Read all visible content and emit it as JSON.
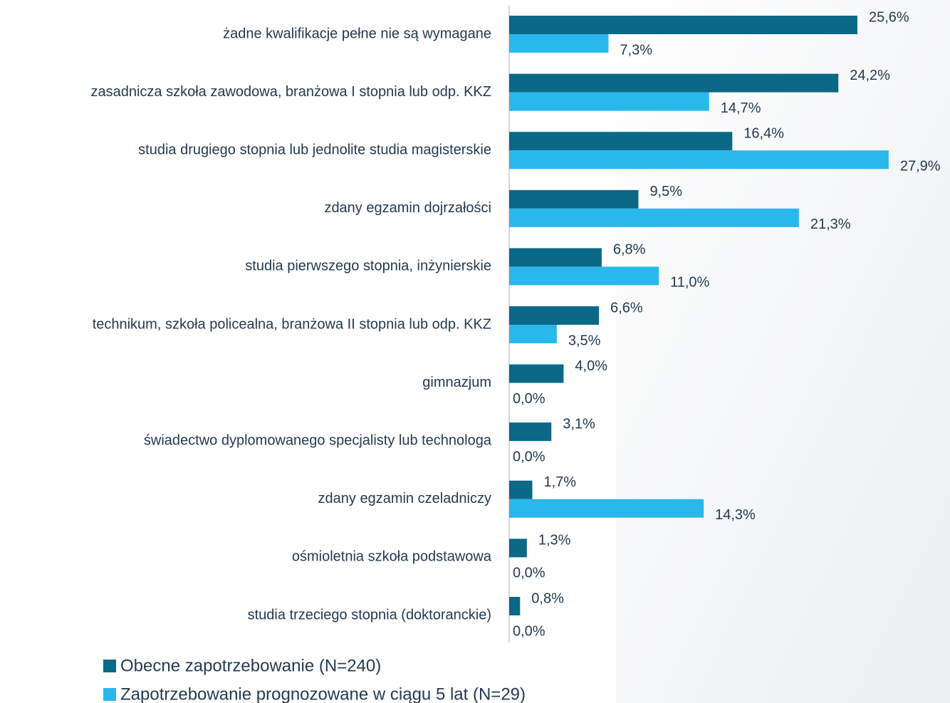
{
  "chart_data": {
    "type": "bar",
    "orientation": "horizontal",
    "categories": [
      "żadne kwalifikacje pełne nie są wymagane",
      "zasadnicza szkoła zawodowa, branżowa I stopnia  lub odp. KKZ",
      "studia drugiego stopnia lub jednolite studia magisterskie",
      "zdany egzamin dojrzałości",
      "studia pierwszego stopnia, inżynierskie",
      "technikum, szkoła policealna, branżowa II stopnia lub odp. KKZ",
      "gimnazjum",
      "świadectwo dyplomowanego specjalisty lub technologa",
      "zdany egzamin czeladniczy",
      "ośmioletnia szkoła podstawowa",
      "studia trzeciego stopnia (doktoranckie)"
    ],
    "series": [
      {
        "name": "Obecne zapotrzebowanie (N=240)",
        "color": "#0b6886",
        "values": [
          25.6,
          24.2,
          16.4,
          9.5,
          6.8,
          6.6,
          4.0,
          3.1,
          1.7,
          1.3,
          0.8
        ],
        "value_labels": [
          "25,6%",
          "24,2%",
          "16,4%",
          "9,5%",
          "6,8%",
          "6,6%",
          "4,0%",
          "3,1%",
          "1,7%",
          "1,3%",
          "0,8%"
        ]
      },
      {
        "name": "Zapotrzebowanie prognozowane w ciągu 5 lat (N=29)",
        "color": "#29b8ec",
        "values": [
          7.3,
          14.7,
          27.9,
          21.3,
          11.0,
          3.5,
          0.0,
          0.0,
          14.3,
          0.0,
          0.0
        ],
        "value_labels": [
          "7,3%",
          "14,7%",
          "27,9%",
          "21,3%",
          "11,0%",
          "3,5%",
          "0,0%",
          "0,0%",
          "14,3%",
          "0,0%",
          "0,0%"
        ]
      }
    ],
    "xlim": [
      0,
      30
    ]
  }
}
